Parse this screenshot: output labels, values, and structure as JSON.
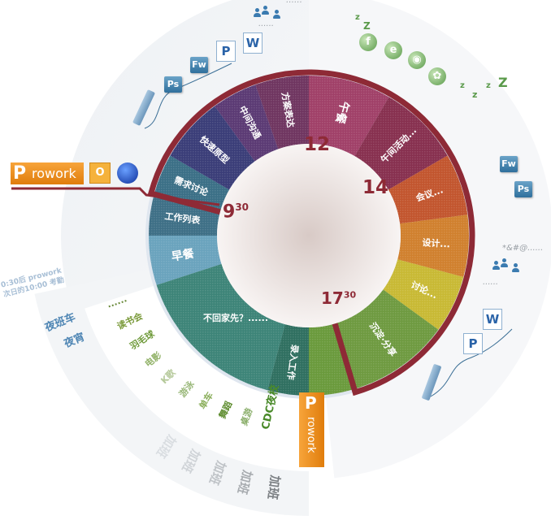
{
  "title": "",
  "colors": {
    "border": "#8e2a36",
    "time": "#8e2a36",
    "inner": "#efe7e5"
  },
  "segments": [
    {
      "label": "早餐",
      "start": 8.4,
      "end": 9.0,
      "color": "#6aa3bd"
    },
    {
      "label": "工作列表",
      "start": 9.0,
      "end": 9.5,
      "color": "#3e6f86"
    },
    {
      "label": "需求讨论",
      "start": 9.5,
      "end": 10.0,
      "color": "#3b6f86"
    },
    {
      "label": "快速原型",
      "start": 10.0,
      "end": 10.8,
      "color": "#3a3d78"
    },
    {
      "label": "中间沟通",
      "start": 10.8,
      "end": 11.35,
      "color": "#5b3a74"
    },
    {
      "label": "方案表达",
      "start": 11.35,
      "end": 12.0,
      "color": "#6f3560"
    },
    {
      "label": "午餐",
      "start": 12.0,
      "end": 13.0,
      "color": "#a04068"
    },
    {
      "label": "午间活动...",
      "start": 13.0,
      "end": 14.0,
      "color": "#87304f"
    },
    {
      "label": "会议...",
      "start": 14.0,
      "end": 14.75,
      "color": "#c2552e"
    },
    {
      "label": "设计...",
      "start": 14.75,
      "end": 15.5,
      "color": "#d0802e"
    },
    {
      "label": "讨论...",
      "start": 15.5,
      "end": 16.2,
      "color": "#c8b934"
    },
    {
      "label": "沉淀·分享",
      "start": 16.2,
      "end": 17.45,
      "color": "#6e9a40"
    },
    {
      "label": "",
      "start": 17.45,
      "end": 18.0,
      "color": "#6a9a3c"
    },
    {
      "label": "录入工作",
      "start": 18.0,
      "end": 18.5,
      "color": "#2f6f60"
    },
    {
      "label": "不回家先？......",
      "start": 18.5,
      "end": 20.4,
      "color": "#3d8478"
    }
  ],
  "time_marks": [
    {
      "hour": "9",
      "minute": "30"
    },
    {
      "hour": "12",
      "minute": ""
    },
    {
      "hour": "14",
      "minute": ""
    },
    {
      "hour": "17",
      "minute": "30"
    }
  ],
  "workday_border": {
    "start": 9.5,
    "end": 17.45
  },
  "logo": {
    "text": "rowork",
    "letter": "P"
  },
  "left_tools": [
    "Ps",
    "Fw",
    "P",
    "W"
  ],
  "right_tools": [
    "Fw",
    "Ps",
    "W",
    "P"
  ],
  "top_note": "……",
  "right_note": "*&#@......",
  "people_dots": "......",
  "evening_activities": [
    "......",
    "读书会",
    "羽毛球",
    "电影",
    "K歌",
    "游泳",
    "单车",
    "舞蹈",
    "桌游",
    "CDC夜校"
  ],
  "night_items": [
    "夜班车",
    "夜宵"
  ],
  "night_note": [
    "0:30后 prowork",
    "次日的10:00 考勤"
  ],
  "overtime": [
    "加班",
    "加班",
    "加班",
    "加班",
    "加班"
  ],
  "sleep_z": [
    "z",
    "Z",
    "z",
    "z",
    "z",
    "Z"
  ],
  "browser_icons": [
    "firefox-icon",
    "ie-icon",
    "chrome-icon",
    "video-icon"
  ]
}
